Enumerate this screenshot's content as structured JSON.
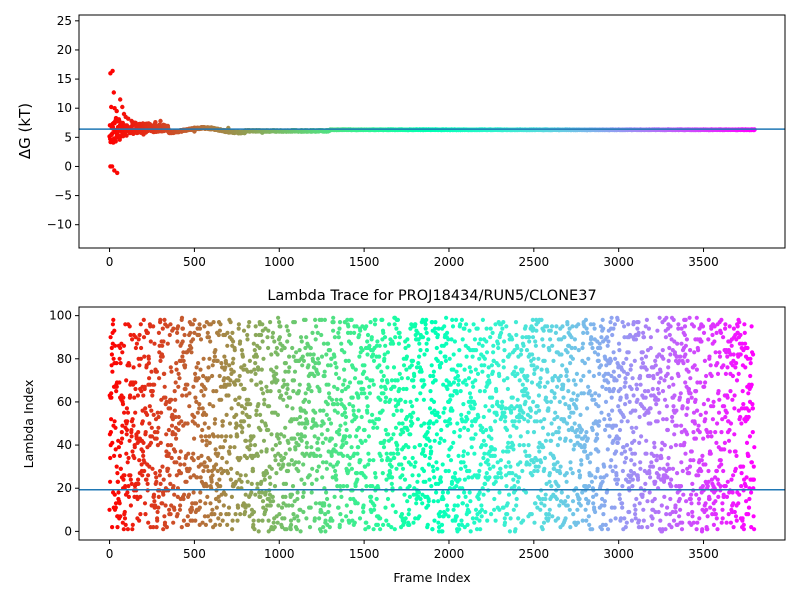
{
  "chart_data": [
    {
      "type": "scatter",
      "title": "",
      "xlabel": "",
      "ylabel": "ΔG (kT)",
      "xlim": [
        -180,
        3980
      ],
      "ylim": [
        -14,
        26
      ],
      "xticks": [
        0,
        500,
        1000,
        1500,
        2000,
        2500,
        3000,
        3500
      ],
      "yticks": [
        -10,
        -5,
        0,
        5,
        10,
        15,
        20,
        25
      ],
      "hline": 6.4,
      "hline_color": "#1f77b4",
      "colormap": "rainbow",
      "grid": false,
      "legend": "none",
      "series": [
        {
          "x_range": [
            0,
            3800
          ],
          "points": [
            [
              5,
              16
            ],
            [
              18,
              16.4
            ],
            [
              25,
              12.7
            ],
            [
              10,
              10.2
            ],
            [
              30,
              10
            ],
            [
              42,
              9.5
            ],
            [
              38,
              8.3
            ],
            [
              55,
              8.1
            ],
            [
              63,
              11.5
            ],
            [
              75,
              10.2
            ],
            [
              85,
              9
            ],
            [
              95,
              8.5
            ],
            [
              110,
              8.2
            ],
            [
              130,
              7.8
            ],
            [
              150,
              7.5
            ],
            [
              180,
              7.3
            ],
            [
              220,
              7.2
            ],
            [
              270,
              7.6
            ],
            [
              300,
              7.8
            ],
            [
              5,
              0
            ],
            [
              15,
              0
            ],
            [
              28,
              -0.7
            ],
            [
              45,
              -1.1
            ],
            [
              22,
              4.1
            ],
            [
              36,
              4.3
            ],
            [
              50,
              5
            ],
            [
              60,
              4.6
            ],
            [
              80,
              5.2
            ],
            [
              100,
              5.3
            ],
            [
              140,
              5.6
            ],
            [
              200,
              5.5
            ],
            [
              260,
              5.9
            ],
            [
              320,
              6.1
            ],
            [
              400,
              6.1
            ],
            [
              500,
              6
            ],
            [
              600,
              6.7
            ],
            [
              700,
              6.6
            ],
            [
              800,
              6.2
            ],
            [
              900,
              5.8
            ],
            [
              1000,
              6
            ],
            [
              1200,
              6.2
            ],
            [
              1500,
              6.3
            ],
            [
              2000,
              6.3
            ],
            [
              2500,
              6.35
            ],
            [
              3000,
              6.35
            ],
            [
              3500,
              6.35
            ],
            [
              3800,
              6.35
            ]
          ]
        }
      ]
    },
    {
      "type": "scatter",
      "title": "Lambda Trace for PROJ18434/RUN5/CLONE37",
      "xlabel": "Frame Index",
      "ylabel": "Lambda Index",
      "xlim": [
        -180,
        3980
      ],
      "ylim": [
        -4,
        104
      ],
      "xticks": [
        0,
        500,
        1000,
        1500,
        2000,
        2500,
        3000,
        3500
      ],
      "yticks": [
        0,
        20,
        40,
        60,
        80,
        100
      ],
      "hline": 19.3,
      "hline_color": "#1f77b4",
      "colormap": "rainbow",
      "grid": false,
      "legend": "none",
      "series": [
        {
          "x_range": [
            0,
            3800
          ],
          "y_range": [
            0,
            99
          ],
          "n_points": 3800,
          "distribution": "uniform_random_walk"
        }
      ]
    }
  ],
  "colors": {
    "axis": "#000000",
    "reference_line": "#1f77b4",
    "background": "#ffffff"
  }
}
